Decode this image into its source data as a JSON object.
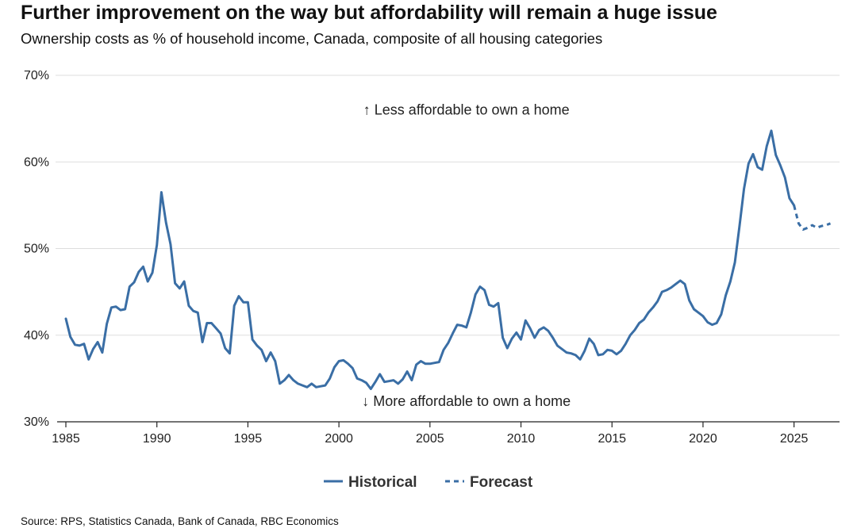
{
  "title": "Further improvement on the way but affordability will remain a huge issue",
  "subtitle": "Ownership costs as % of household income, Canada, composite of all housing categories",
  "source": "Source: RPS, Statistics Canada, Bank of Canada, RBC Economics",
  "colors": {
    "line": "#3a6ea5",
    "grid": "#dddddd",
    "axis": "#222222"
  },
  "chart_data": {
    "type": "line",
    "title": "Further improvement on the way but affordability will remain a huge issue",
    "subtitle": "Ownership costs as % of household income, Canada, composite of all housing categories",
    "xlabel": "",
    "ylabel": "",
    "xlim": [
      1985,
      2027.5
    ],
    "ylim": [
      30,
      70
    ],
    "x_ticks": [
      1985,
      1990,
      1995,
      2000,
      2005,
      2010,
      2015,
      2020,
      2025
    ],
    "x_tick_labels": [
      "1985",
      "1990",
      "1995",
      "2000",
      "2005",
      "2010",
      "2015",
      "2020",
      "2025"
    ],
    "y_ticks": [
      30,
      40,
      50,
      60,
      70
    ],
    "y_tick_labels": [
      "30%",
      "40%",
      "50%",
      "60%",
      "70%"
    ],
    "grid": "horizontal",
    "legend_position": "bottom-center",
    "annotations": [
      {
        "text": "↑ Less affordable to own a home",
        "x": 2007,
        "y": 66
      },
      {
        "text": "↓ More affordable to own a home",
        "x": 2007,
        "y": 32.4
      }
    ],
    "series": [
      {
        "name": "Historical",
        "style": "solid",
        "x": [
          1985.0,
          1985.25,
          1985.5,
          1985.75,
          1986.0,
          1986.25,
          1986.5,
          1986.75,
          1987.0,
          1987.25,
          1987.5,
          1987.75,
          1988.0,
          1988.25,
          1988.5,
          1988.75,
          1989.0,
          1989.25,
          1989.5,
          1989.75,
          1990.0,
          1990.25,
          1990.5,
          1990.75,
          1991.0,
          1991.25,
          1991.5,
          1991.75,
          1992.0,
          1992.25,
          1992.5,
          1992.75,
          1993.0,
          1993.25,
          1993.5,
          1993.75,
          1994.0,
          1994.25,
          1994.5,
          1994.75,
          1995.0,
          1995.25,
          1995.5,
          1995.75,
          1996.0,
          1996.25,
          1996.5,
          1996.75,
          1997.0,
          1997.25,
          1997.5,
          1997.75,
          1998.0,
          1998.25,
          1998.5,
          1998.75,
          1999.0,
          1999.25,
          1999.5,
          1999.75,
          2000.0,
          2000.25,
          2000.5,
          2000.75,
          2001.0,
          2001.25,
          2001.5,
          2001.75,
          2002.0,
          2002.25,
          2002.5,
          2002.75,
          2003.0,
          2003.25,
          2003.5,
          2003.75,
          2004.0,
          2004.25,
          2004.5,
          2004.75,
          2005.0,
          2005.25,
          2005.5,
          2005.75,
          2006.0,
          2006.25,
          2006.5,
          2006.75,
          2007.0,
          2007.25,
          2007.5,
          2007.75,
          2008.0,
          2008.25,
          2008.5,
          2008.75,
          2009.0,
          2009.25,
          2009.5,
          2009.75,
          2010.0,
          2010.25,
          2010.5,
          2010.75,
          2011.0,
          2011.25,
          2011.5,
          2011.75,
          2012.0,
          2012.25,
          2012.5,
          2012.75,
          2013.0,
          2013.25,
          2013.5,
          2013.75,
          2014.0,
          2014.25,
          2014.5,
          2014.75,
          2015.0,
          2015.25,
          2015.5,
          2015.75,
          2016.0,
          2016.25,
          2016.5,
          2016.75,
          2017.0,
          2017.25,
          2017.5,
          2017.75,
          2018.0,
          2018.25,
          2018.5,
          2018.75,
          2019.0,
          2019.25,
          2019.5,
          2019.75,
          2020.0,
          2020.25,
          2020.5,
          2020.75,
          2021.0,
          2021.25,
          2021.5,
          2021.75,
          2022.0,
          2022.25,
          2022.5,
          2022.75,
          2023.0,
          2023.25,
          2023.5,
          2023.75,
          2024.0,
          2024.25,
          2024.5,
          2024.75,
          2025.0
        ],
        "values": [
          41.9,
          39.8,
          38.9,
          38.8,
          39.0,
          37.2,
          38.4,
          39.2,
          38.0,
          41.3,
          43.2,
          43.3,
          42.9,
          43.0,
          45.6,
          46.1,
          47.3,
          47.9,
          46.2,
          47.2,
          50.4,
          56.5,
          53.0,
          50.5,
          46.0,
          45.4,
          46.2,
          43.4,
          42.8,
          42.6,
          39.2,
          41.4,
          41.4,
          40.8,
          40.2,
          38.5,
          37.9,
          43.4,
          44.5,
          43.8,
          43.8,
          39.5,
          38.8,
          38.3,
          37.0,
          38.0,
          37.0,
          34.4,
          34.8,
          35.4,
          34.8,
          34.4,
          34.2,
          34.0,
          34.4,
          34.0,
          34.1,
          34.2,
          35.0,
          36.3,
          37.0,
          37.1,
          36.7,
          36.2,
          35.0,
          34.8,
          34.5,
          33.8,
          34.6,
          35.5,
          34.6,
          34.7,
          34.8,
          34.4,
          34.9,
          35.8,
          34.8,
          36.6,
          37.0,
          36.7,
          36.7,
          36.8,
          36.9,
          38.3,
          39.1,
          40.2,
          41.2,
          41.1,
          40.9,
          42.6,
          44.7,
          45.6,
          45.2,
          43.5,
          43.3,
          43.7,
          39.7,
          38.5,
          39.6,
          40.3,
          39.5,
          41.7,
          40.8,
          39.7,
          40.6,
          40.9,
          40.5,
          39.7,
          38.8,
          38.4,
          38.0,
          37.9,
          37.7,
          37.2,
          38.2,
          39.6,
          39.0,
          37.7,
          37.8,
          38.3,
          38.2,
          37.8,
          38.2,
          39.0,
          40.0,
          40.6,
          41.4,
          41.8,
          42.6,
          43.2,
          43.9,
          45.0,
          45.2,
          45.5,
          45.9,
          46.3,
          45.9,
          44.0,
          43.0,
          42.6,
          42.2,
          41.5,
          41.2,
          41.4,
          42.4,
          44.6,
          46.2,
          48.4,
          52.5,
          56.9,
          59.8,
          60.9,
          59.4,
          59.1,
          61.8,
          63.6,
          60.8,
          59.6,
          58.2,
          55.8,
          55.0
        ]
      },
      {
        "name": "Forecast",
        "style": "dashed",
        "x": [
          2025.0,
          2025.25,
          2025.5,
          2025.75,
          2026.0,
          2026.25,
          2026.5,
          2026.75,
          2027.0
        ],
        "values": [
          55.0,
          52.9,
          52.2,
          52.4,
          52.7,
          52.4,
          52.6,
          52.7,
          52.9
        ]
      }
    ]
  }
}
